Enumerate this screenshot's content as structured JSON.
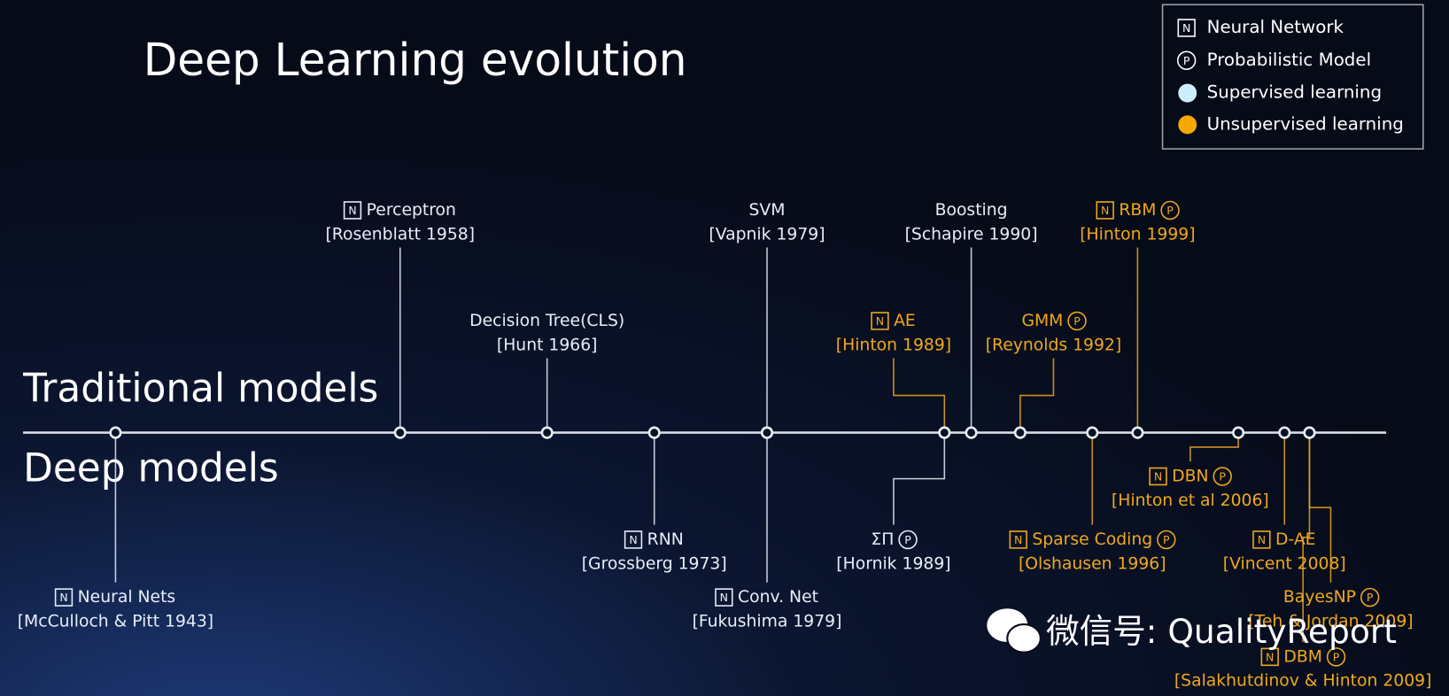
{
  "title": "Deep Learning evolution",
  "legend": [
    {
      "badge": "N",
      "label": "Neural Network"
    },
    {
      "badge": "P",
      "label": "Probabilistic Model"
    },
    {
      "label": "Supervised learning",
      "color": "#cdeefb"
    },
    {
      "label": "Unsupervised learning",
      "color": "#f5a800"
    }
  ],
  "sections": [
    "Traditional models",
    "Deep models"
  ],
  "nodes": [
    {
      "prefix": "N",
      "name": "Neural Nets",
      "citation": "[McCulloch & Pitt 1943]",
      "color": "#e8eef8"
    },
    {
      "prefix": "N",
      "name": "Perceptron",
      "citation": "[Rosenblatt 1958]",
      "color": "#e8eef8"
    },
    {
      "name": "Decision Tree(CLS)",
      "citation": "[Hunt 1966]",
      "color": "#e8eef8"
    },
    {
      "prefix": "N",
      "name": "RNN",
      "citation": "[Grossberg 1973]",
      "color": "#e8eef8"
    },
    {
      "name": "SVM",
      "citation": "[Vapnik 1979]",
      "color": "#e8eef8"
    },
    {
      "prefix": "N",
      "name": "Conv. Net",
      "citation": "[Fukushima 1979]",
      "color": "#e8eef8"
    },
    {
      "prefix": "N",
      "name": "AE",
      "citation": "[Hinton 1989]",
      "color": "#f0a81c"
    },
    {
      "name": "ΣΠ",
      "suffix": "P",
      "citation": "[Hornik 1989]",
      "color": "#e8eef8"
    },
    {
      "name": "Boosting",
      "citation": "[Schapire 1990]",
      "color": "#e8eef8"
    },
    {
      "name": "GMM",
      "suffix": "P",
      "citation": "[Reynolds 1992]",
      "color": "#f0a81c"
    },
    {
      "prefix": "N",
      "name": "Sparse Coding",
      "suffix": "P",
      "citation": "[Olshausen 1996]",
      "color": "#f0a81c"
    },
    {
      "prefix": "N",
      "name": "RBM",
      "suffix": "P",
      "citation": "[Hinton 1999]",
      "color": "#f0a81c"
    },
    {
      "prefix": "N",
      "name": "DBN",
      "suffix": "P",
      "citation": "[Hinton et al 2006]",
      "color": "#f0a81c"
    },
    {
      "prefix": "N",
      "name": "D-AE",
      "citation": "[Vincent 2008]",
      "color": "#f0a81c"
    },
    {
      "name": "BayesNP",
      "suffix": "P",
      "citation": "[Teh & Jordan 2009]",
      "color": "#f0a81c"
    },
    {
      "prefix": "N",
      "name": "DBM",
      "suffix": "P",
      "citation": "[Salakhutdinov & Hinton 2009]",
      "color": "#f0a81c"
    }
  ],
  "watermark": "微信号: QualityReport"
}
